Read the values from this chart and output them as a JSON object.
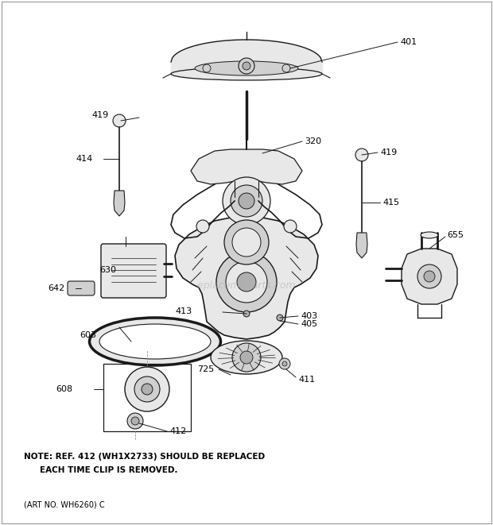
{
  "bg_color": "#ffffff",
  "line_color": "#1a1a1a",
  "fill_light": "#e8e8e8",
  "fill_mid": "#d0d0d0",
  "fill_dark": "#b0b0b0",
  "text_color": "#000000",
  "note_line1": "NOTE: REF. 412 (WH1X2733) SHOULD BE REPLACED",
  "note_line2": "EACH TIME CLIP IS REMOVED.",
  "art_no": "(ART NO. WH6260) C",
  "watermark": "eplaceme   arts.com"
}
